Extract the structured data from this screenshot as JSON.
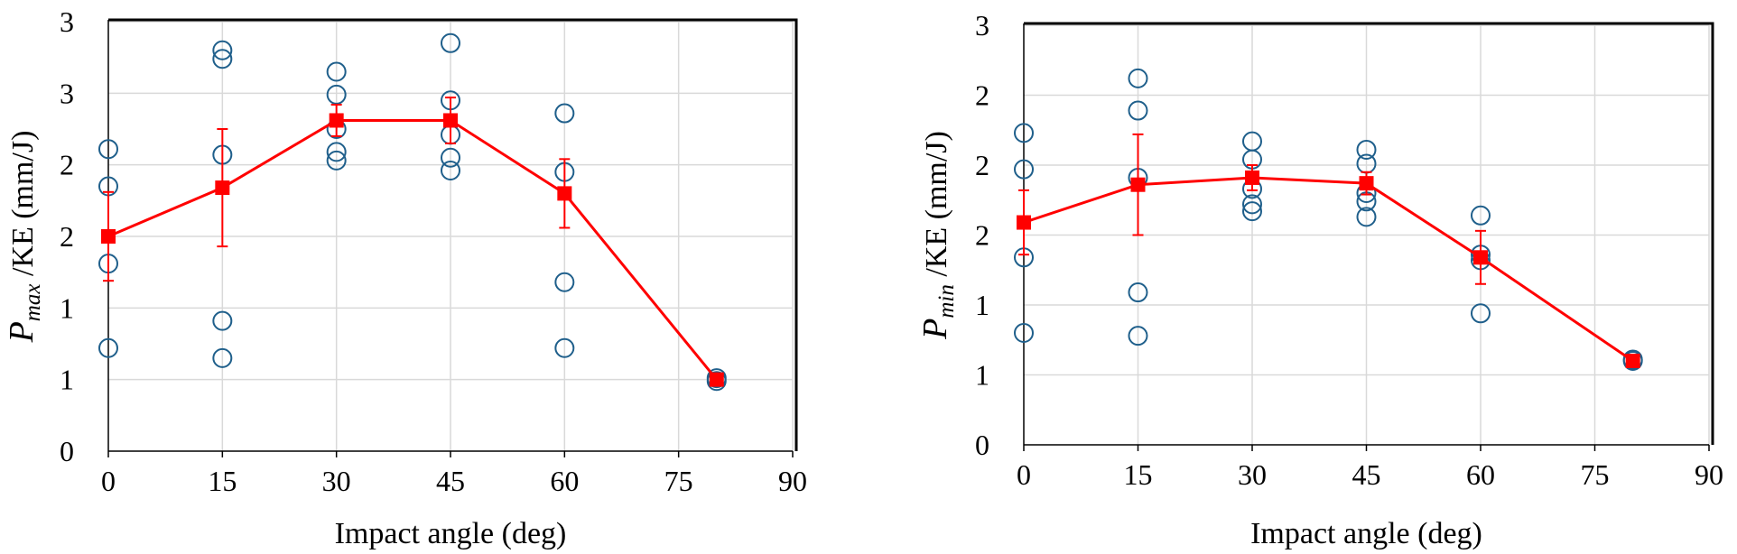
{
  "chart_data": [
    {
      "type": "scatter",
      "xlabel": "Impact angle (deg)",
      "ylabel_symbol": "P",
      "ylabel_subscript": "max",
      "ylabel_rest": " /KE (mm/J)",
      "xticks": [
        0,
        15,
        30,
        45,
        60,
        75,
        90
      ],
      "yticks": [
        "0",
        "1",
        "1",
        "2",
        "2",
        "3",
        "3"
      ],
      "xlim": [
        0,
        90
      ],
      "ylim": [
        0,
        3
      ],
      "grid": true,
      "series": [
        {
          "marker": "open-circle",
          "color": "#1f5f8b",
          "points": [
            {
              "x": 0,
              "y": 0.72
            },
            {
              "x": 0,
              "y": 1.31
            },
            {
              "x": 0,
              "y": 1.85
            },
            {
              "x": 0,
              "y": 2.11
            },
            {
              "x": 15,
              "y": 0.65
            },
            {
              "x": 15,
              "y": 0.91
            },
            {
              "x": 15,
              "y": 2.07
            },
            {
              "x": 15,
              "y": 2.74
            },
            {
              "x": 15,
              "y": 2.8
            },
            {
              "x": 30,
              "y": 2.03
            },
            {
              "x": 30,
              "y": 2.09
            },
            {
              "x": 30,
              "y": 2.25
            },
            {
              "x": 30,
              "y": 2.49
            },
            {
              "x": 30,
              "y": 2.65
            },
            {
              "x": 45,
              "y": 1.96
            },
            {
              "x": 45,
              "y": 2.05
            },
            {
              "x": 45,
              "y": 2.21
            },
            {
              "x": 45,
              "y": 2.45
            },
            {
              "x": 45,
              "y": 2.85
            },
            {
              "x": 60,
              "y": 0.72
            },
            {
              "x": 60,
              "y": 1.18
            },
            {
              "x": 60,
              "y": 1.95
            },
            {
              "x": 60,
              "y": 2.36
            },
            {
              "x": 80,
              "y": 0.49
            },
            {
              "x": 80,
              "y": 0.51
            }
          ]
        },
        {
          "marker": "filled-square-line",
          "color": "#ff0000",
          "x": [
            0,
            15,
            30,
            45,
            60,
            80
          ],
          "y": [
            1.5,
            1.84,
            2.31,
            2.31,
            1.8,
            0.5
          ],
          "error": [
            0.31,
            0.41,
            0.11,
            0.16,
            0.24,
            0.02
          ]
        }
      ]
    },
    {
      "type": "scatter",
      "xlabel": "Impact angle (deg)",
      "ylabel_symbol": "P",
      "ylabel_subscript": "min",
      "ylabel_rest": " /KE (mm/J)",
      "xticks": [
        0,
        15,
        30,
        45,
        60,
        75,
        90
      ],
      "yticks": [
        "0",
        "1",
        "1",
        "2",
        "2",
        "2",
        "3"
      ],
      "xlim": [
        0,
        90
      ],
      "ylim": [
        0,
        3
      ],
      "grid": true,
      "series": [
        {
          "marker": "open-circle",
          "color": "#1f5f8b",
          "points": [
            {
              "x": 0,
              "y": 0.8
            },
            {
              "x": 0,
              "y": 1.34
            },
            {
              "x": 0,
              "y": 1.97
            },
            {
              "x": 0,
              "y": 2.23
            },
            {
              "x": 15,
              "y": 0.78
            },
            {
              "x": 15,
              "y": 1.09
            },
            {
              "x": 15,
              "y": 1.91
            },
            {
              "x": 15,
              "y": 2.39
            },
            {
              "x": 15,
              "y": 2.62
            },
            {
              "x": 30,
              "y": 1.67
            },
            {
              "x": 30,
              "y": 1.72
            },
            {
              "x": 30,
              "y": 1.83
            },
            {
              "x": 30,
              "y": 2.04
            },
            {
              "x": 30,
              "y": 2.17
            },
            {
              "x": 45,
              "y": 1.63
            },
            {
              "x": 45,
              "y": 1.74
            },
            {
              "x": 45,
              "y": 2.01
            },
            {
              "x": 45,
              "y": 2.11
            },
            {
              "x": 45,
              "y": 1.8
            },
            {
              "x": 60,
              "y": 0.94
            },
            {
              "x": 60,
              "y": 1.32
            },
            {
              "x": 60,
              "y": 1.36
            },
            {
              "x": 60,
              "y": 1.64
            },
            {
              "x": 80,
              "y": 0.6
            },
            {
              "x": 80,
              "y": 0.61
            }
          ]
        },
        {
          "marker": "filled-square-line",
          "color": "#ff0000",
          "x": [
            0,
            15,
            30,
            45,
            60,
            80
          ],
          "y": [
            1.59,
            1.86,
            1.91,
            1.87,
            1.34,
            0.6
          ],
          "error": [
            0.23,
            0.36,
            0.09,
            0.08,
            0.19,
            0.02
          ]
        }
      ]
    }
  ]
}
